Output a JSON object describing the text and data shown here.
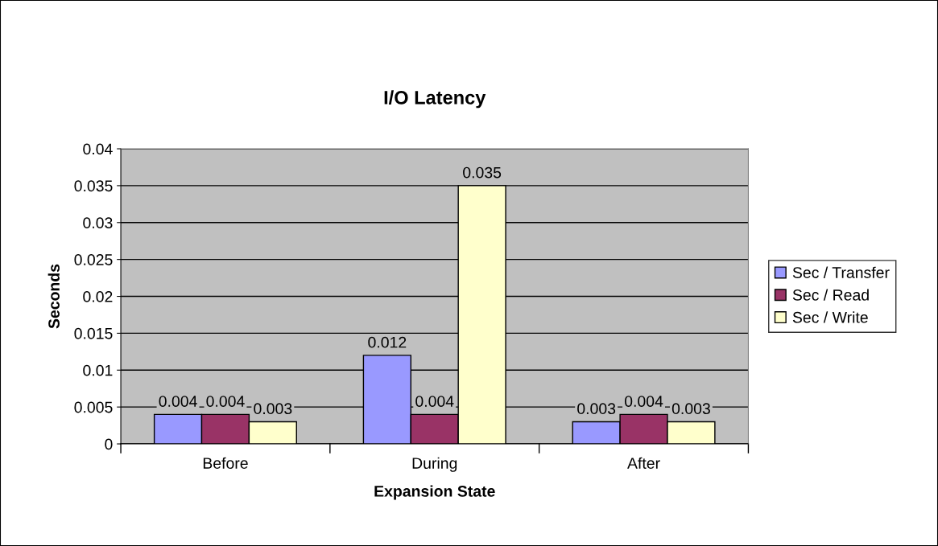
{
  "chart_data": {
    "type": "bar",
    "title": "I/O Latency",
    "xlabel": "Expansion State",
    "ylabel": "Seconds",
    "categories": [
      "Before",
      "During",
      "After"
    ],
    "series": [
      {
        "name": "Sec / Transfer",
        "color": "#9999ff",
        "values": [
          0.004,
          0.012,
          0.003
        ]
      },
      {
        "name": "Sec / Read",
        "color": "#993366",
        "values": [
          0.004,
          0.004,
          0.004
        ]
      },
      {
        "name": "Sec / Write",
        "color": "#ffffcc",
        "values": [
          0.003,
          0.035,
          0.003
        ]
      }
    ],
    "ylim": [
      0,
      0.04
    ],
    "yticks": [
      0,
      0.005,
      0.01,
      0.015,
      0.02,
      0.025,
      0.03,
      0.035,
      0.04
    ],
    "grid": "y",
    "legend": "right",
    "data_labels": true
  }
}
